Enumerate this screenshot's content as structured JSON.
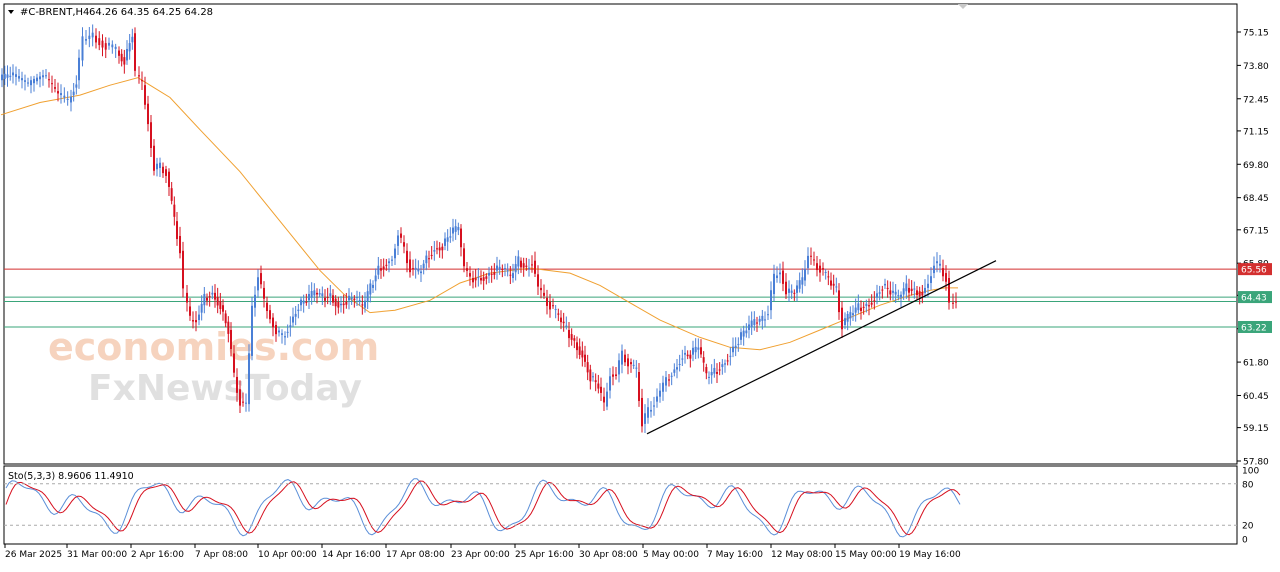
{
  "header": {
    "collapse_icon": "triangle-down-icon",
    "symbol": "#C-BRENT,H4",
    "ohlc": "64.26 64.35 64.25 64.28"
  },
  "price_axis": {
    "ticks": [
      "75.15",
      "73.80",
      "72.45",
      "71.15",
      "69.80",
      "68.45",
      "67.15",
      "65.80",
      "64.50",
      "63.15",
      "61.80",
      "60.45",
      "59.15",
      "57.80"
    ],
    "min": 57.8,
    "max": 75.8
  },
  "levels": [
    {
      "label": "65.56",
      "value": 65.56,
      "color": "#d32f2f"
    },
    {
      "label": "64.43",
      "value": 64.43,
      "color": "#3aa57a"
    },
    {
      "label": "63.22",
      "value": 63.22,
      "color": "#3aa57a"
    }
  ],
  "level_line_extra": {
    "value": 64.25,
    "color": "#3aa57a"
  },
  "stochastic": {
    "label": "Sto(5,3,3) 8.9606 11.4910",
    "ticks": [
      "100",
      "80",
      "20",
      "0"
    ],
    "levels": [
      80,
      20
    ]
  },
  "time_axis": [
    "26 Mar 2025",
    "31 Mar 00:00",
    "2 Apr 16:00",
    "7 Apr 08:00",
    "10 Apr 00:00",
    "14 Apr 16:00",
    "17 Apr 08:00",
    "23 Apr 00:00",
    "25 Apr 16:00",
    "30 Apr 08:00",
    "5 May 00:00",
    "7 May 16:00",
    "12 May 08:00",
    "15 May 00:00",
    "19 May 16:00"
  ],
  "watermark": {
    "line1": "economies.com",
    "line2": "FxNewsToday"
  },
  "colors": {
    "bull": "#4a7fd6",
    "bear": "#d6101f",
    "ma": "#f0a030",
    "trendline": "#000000"
  },
  "chart_data": {
    "type": "candlestick",
    "title": "#C-BRENT,H4",
    "ylim": [
      57.8,
      75.8
    ],
    "series": [
      {
        "name": "price",
        "points": [
          [
            1,
            73.2
          ],
          [
            12,
            73.4
          ],
          [
            30,
            73.0
          ],
          [
            45,
            73.4
          ],
          [
            60,
            72.6
          ],
          [
            70,
            72.3
          ],
          [
            78,
            73.2
          ],
          [
            85,
            74.8
          ],
          [
            95,
            75.0
          ],
          [
            108,
            74.6
          ],
          [
            118,
            74.4
          ],
          [
            126,
            74.0
          ],
          [
            134,
            75.1
          ],
          [
            138,
            73.4
          ],
          [
            144,
            73.0
          ],
          [
            150,
            71.5
          ],
          [
            156,
            69.6
          ],
          [
            162,
            69.7
          ],
          [
            168,
            69.5
          ],
          [
            176,
            67.5
          ],
          [
            182,
            66.3
          ],
          [
            186,
            64.6
          ],
          [
            192,
            63.5
          ],
          [
            198,
            63.5
          ],
          [
            206,
            64.4
          ],
          [
            214,
            64.6
          ],
          [
            222,
            64.1
          ],
          [
            230,
            63.1
          ],
          [
            236,
            61.2
          ],
          [
            242,
            60.2
          ],
          [
            248,
            60.1
          ],
          [
            254,
            64.0
          ],
          [
            260,
            65.4
          ],
          [
            266,
            64.2
          ],
          [
            272,
            63.6
          ],
          [
            278,
            63.0
          ],
          [
            284,
            62.8
          ],
          [
            292,
            63.4
          ],
          [
            300,
            64.1
          ],
          [
            308,
            64.3
          ],
          [
            316,
            64.6
          ],
          [
            324,
            64.4
          ],
          [
            332,
            64.5
          ],
          [
            340,
            64.1
          ],
          [
            348,
            64.3
          ],
          [
            356,
            64.4
          ],
          [
            364,
            64.0
          ],
          [
            372,
            64.8
          ],
          [
            380,
            65.6
          ],
          [
            388,
            65.8
          ],
          [
            394,
            66.0
          ],
          [
            400,
            67.0
          ],
          [
            406,
            66.3
          ],
          [
            412,
            65.6
          ],
          [
            420,
            65.4
          ],
          [
            428,
            66.0
          ],
          [
            436,
            66.4
          ],
          [
            444,
            66.5
          ],
          [
            452,
            67.0
          ],
          [
            460,
            67.2
          ],
          [
            466,
            65.6
          ],
          [
            472,
            65.2
          ],
          [
            480,
            65.2
          ],
          [
            488,
            65.3
          ],
          [
            496,
            65.5
          ],
          [
            504,
            65.6
          ],
          [
            512,
            65.2
          ],
          [
            520,
            65.9
          ],
          [
            528,
            65.6
          ],
          [
            534,
            65.9
          ],
          [
            540,
            64.8
          ],
          [
            546,
            64.4
          ],
          [
            552,
            64.1
          ],
          [
            560,
            63.6
          ],
          [
            568,
            63.1
          ],
          [
            576,
            62.6
          ],
          [
            584,
            62.1
          ],
          [
            592,
            61.2
          ],
          [
            600,
            60.8
          ],
          [
            606,
            60.0
          ],
          [
            612,
            61.3
          ],
          [
            618,
            61.3
          ],
          [
            624,
            62.1
          ],
          [
            630,
            61.8
          ],
          [
            638,
            61.4
          ],
          [
            644,
            59.3
          ],
          [
            650,
            59.8
          ],
          [
            656,
            60.2
          ],
          [
            662,
            60.6
          ],
          [
            668,
            61.1
          ],
          [
            676,
            61.5
          ],
          [
            684,
            62.1
          ],
          [
            692,
            62.1
          ],
          [
            700,
            62.4
          ],
          [
            708,
            61.2
          ],
          [
            716,
            61.4
          ],
          [
            724,
            61.7
          ],
          [
            732,
            62.2
          ],
          [
            740,
            62.7
          ],
          [
            748,
            63.1
          ],
          [
            756,
            63.4
          ],
          [
            764,
            63.5
          ],
          [
            770,
            63.9
          ],
          [
            776,
            65.2
          ],
          [
            782,
            65.5
          ],
          [
            788,
            64.6
          ],
          [
            796,
            64.6
          ],
          [
            804,
            65.1
          ],
          [
            810,
            66.1
          ],
          [
            816,
            65.8
          ],
          [
            822,
            65.6
          ],
          [
            830,
            65.1
          ],
          [
            838,
            64.7
          ],
          [
            844,
            63.3
          ],
          [
            852,
            63.7
          ],
          [
            860,
            64.0
          ],
          [
            868,
            64.1
          ],
          [
            876,
            64.4
          ],
          [
            884,
            64.9
          ],
          [
            892,
            64.6
          ],
          [
            900,
            64.4
          ],
          [
            908,
            64.8
          ],
          [
            916,
            64.7
          ],
          [
            924,
            64.6
          ],
          [
            930,
            65.0
          ],
          [
            936,
            65.8
          ],
          [
            942,
            65.6
          ],
          [
            948,
            65.2
          ],
          [
            952,
            64.2
          ],
          [
            958,
            64.3
          ]
        ]
      },
      {
        "name": "moving-average",
        "points": [
          [
            1,
            71.8
          ],
          [
            40,
            72.3
          ],
          [
            80,
            72.6
          ],
          [
            110,
            73.0
          ],
          [
            138,
            73.3
          ],
          [
            150,
            73.0
          ],
          [
            170,
            72.5
          ],
          [
            200,
            71.2
          ],
          [
            240,
            69.5
          ],
          [
            280,
            67.5
          ],
          [
            320,
            65.5
          ],
          [
            345,
            64.5
          ],
          [
            370,
            63.8
          ],
          [
            395,
            63.9
          ],
          [
            430,
            64.3
          ],
          [
            460,
            65.0
          ],
          [
            490,
            65.4
          ],
          [
            530,
            65.6
          ],
          [
            570,
            65.4
          ],
          [
            600,
            64.9
          ],
          [
            630,
            64.2
          ],
          [
            660,
            63.5
          ],
          [
            700,
            62.8
          ],
          [
            730,
            62.4
          ],
          [
            760,
            62.3
          ],
          [
            790,
            62.6
          ],
          [
            820,
            63.1
          ],
          [
            850,
            63.6
          ],
          [
            880,
            64.1
          ],
          [
            910,
            64.5
          ],
          [
            930,
            64.7
          ],
          [
            945,
            64.8
          ],
          [
            958,
            64.8
          ]
        ]
      },
      {
        "name": "trendline",
        "points": [
          [
            647,
            58.9
          ],
          [
            996,
            65.9
          ]
        ]
      }
    ]
  }
}
